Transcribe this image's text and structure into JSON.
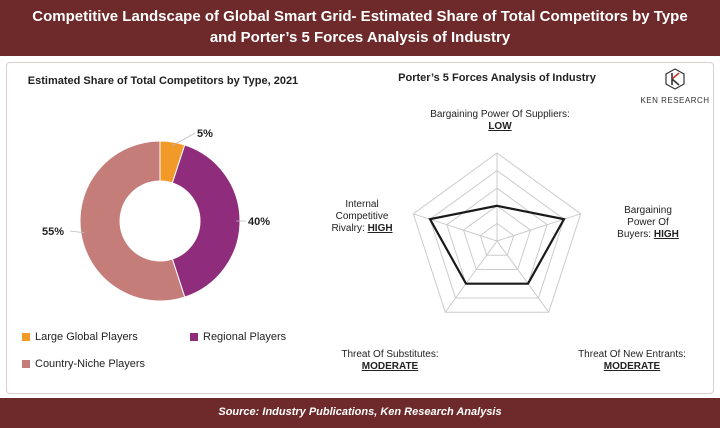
{
  "header": {
    "title_line1": "Competitive Landscape of Global Smart Grid- Estimated Share of Total Competitors by Type",
    "title_line2": "and Porter’s 5 Forces Analysis of Industry"
  },
  "logo": {
    "text": "KEN RESEARCH",
    "icon": "ken-research-logo"
  },
  "footer": {
    "source": "Source: Industry Publications, Ken Research Analysis"
  },
  "chart_data": [
    {
      "type": "pie",
      "variant": "donut",
      "title": "Estimated Share of Total Competitors by Type, 2021",
      "categories": [
        "Large Global Players",
        "Regional Players",
        "Country-Niche Players"
      ],
      "values": [
        5,
        40,
        55
      ],
      "labels": [
        "5%",
        "40%",
        "55%"
      ],
      "colors": [
        "#f19a2a",
        "#8f2c7c",
        "#c47d78"
      ],
      "legend": "bottom"
    },
    {
      "type": "radar",
      "title": "Porter’s 5 Forces Analysis of Industry",
      "axes": [
        {
          "name": "Bargaining Power Of Suppliers:",
          "level": "LOW",
          "value": 2
        },
        {
          "name": "Bargaining Power Of Buyers:",
          "level": "HIGH",
          "value": 4
        },
        {
          "name": "Threat Of New Entrants:",
          "level": "MODERATE",
          "value": 3
        },
        {
          "name": "Threat Of Substitutes:",
          "level": "MODERATE",
          "value": 3
        },
        {
          "name": "Internal Competitive Rivalry:",
          "level": "HIGH",
          "value": 4
        }
      ],
      "scale_max": 5,
      "grid_levels": 5,
      "series_color": "#1a1a1a",
      "grid_color": "#cccccc"
    }
  ]
}
